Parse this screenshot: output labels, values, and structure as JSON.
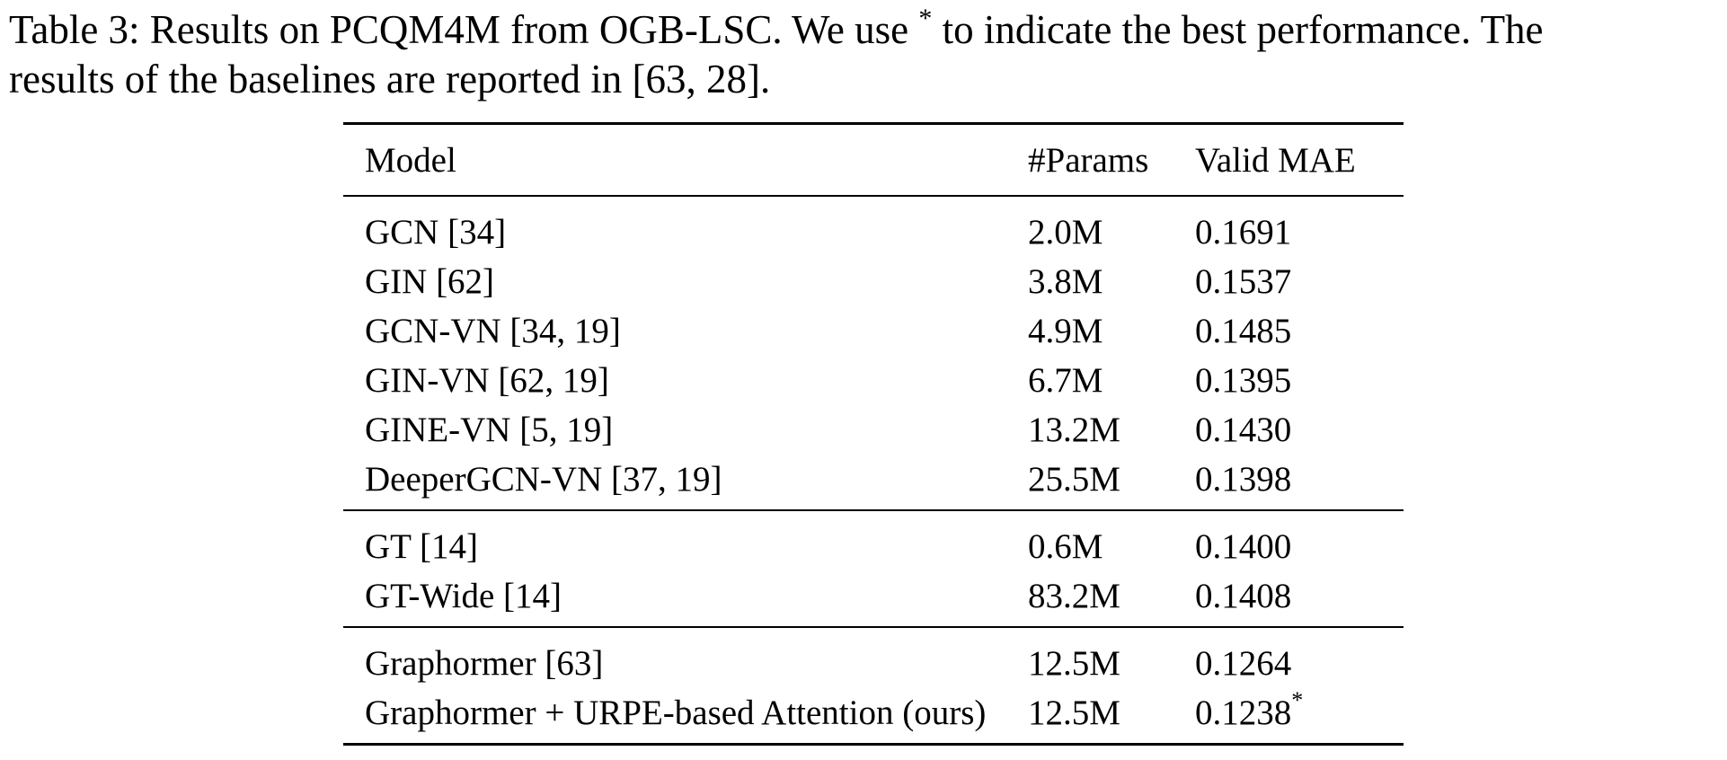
{
  "caption": {
    "line1_prefix": "Table 3: Results on PCQM4M from OGB-LSC. We use ",
    "line1_star": "*",
    "line1_suffix": " to indicate the best performance. The",
    "line2": "results of the baselines are reported in [63, 28]."
  },
  "table": {
    "headers": [
      "Model",
      "#Params",
      "Valid MAE"
    ],
    "groups": [
      [
        {
          "model": "GCN [34]",
          "params": "2.0M",
          "mae": "0.1691"
        },
        {
          "model": "GIN [62]",
          "params": "3.8M",
          "mae": "0.1537"
        },
        {
          "model": "GCN-VN [34, 19]",
          "params": "4.9M",
          "mae": "0.1485"
        },
        {
          "model": "GIN-VN [62, 19]",
          "params": "6.7M",
          "mae": "0.1395"
        },
        {
          "model": "GINE-VN [5, 19]",
          "params": "13.2M",
          "mae": "0.1430"
        },
        {
          "model": "DeeperGCN-VN [37, 19]",
          "params": "25.5M",
          "mae": "0.1398"
        }
      ],
      [
        {
          "model": "GT [14]",
          "params": "0.6M",
          "mae": "0.1400"
        },
        {
          "model": "GT-Wide [14]",
          "params": "83.2M",
          "mae": "0.1408"
        }
      ],
      [
        {
          "model": "Graphormer [63]",
          "params": "12.5M",
          "mae": "0.1264"
        },
        {
          "model": "Graphormer + URPE-based Attention (ours)",
          "params": "12.5M",
          "mae": "0.1238",
          "best_mark": "*"
        }
      ]
    ]
  }
}
